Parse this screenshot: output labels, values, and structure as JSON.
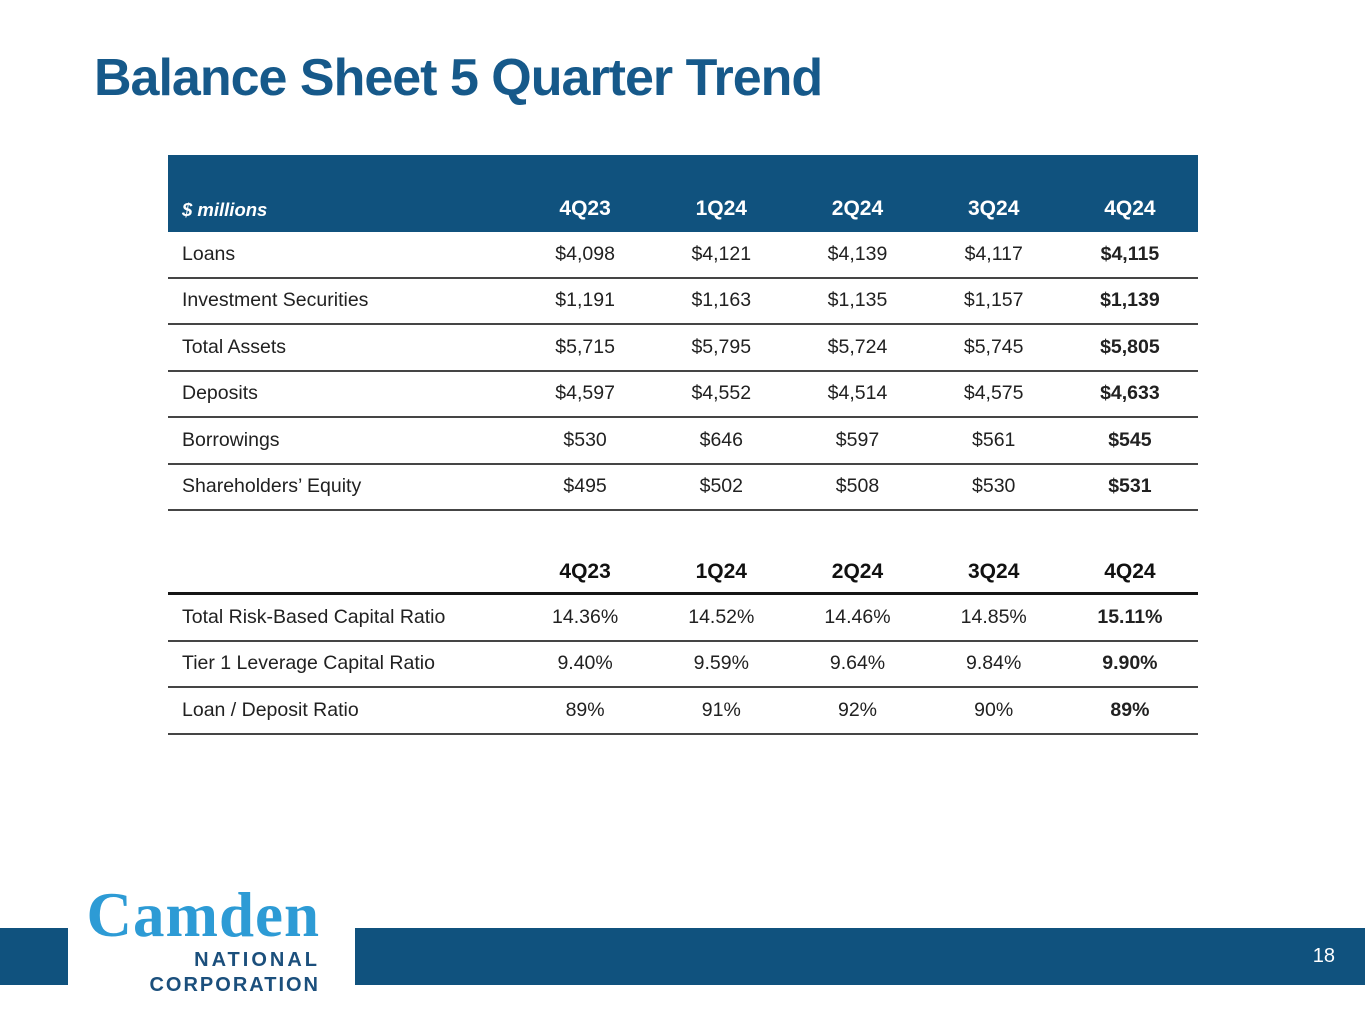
{
  "title": "Balance Sheet 5 Quarter Trend",
  "colors": {
    "brand_blue": "#10527E",
    "title_blue": "#16598A",
    "logo_light_blue": "#2D9BD5",
    "logo_navy": "#1B4F7C"
  },
  "balance_table": {
    "unit_label": "$ millions",
    "columns": [
      "4Q23",
      "1Q24",
      "2Q24",
      "3Q24",
      "4Q24"
    ],
    "rows": [
      {
        "label": "Loans",
        "values": [
          "$4,098",
          "$4,121",
          "$4,139",
          "$4,117",
          "$4,115"
        ]
      },
      {
        "label": "Investment Securities",
        "values": [
          "$1,191",
          "$1,163",
          "$1,135",
          "$1,157",
          "$1,139"
        ]
      },
      {
        "label": "Total Assets",
        "values": [
          "$5,715",
          "$5,795",
          "$5,724",
          "$5,745",
          "$5,805"
        ]
      },
      {
        "label": "Deposits",
        "values": [
          "$4,597",
          "$4,552",
          "$4,514",
          "$4,575",
          "$4,633"
        ]
      },
      {
        "label": "Borrowings",
        "values": [
          "$530",
          "$646",
          "$597",
          "$561",
          "$545"
        ]
      },
      {
        "label": "Shareholders’ Equity",
        "values": [
          "$495",
          "$502",
          "$508",
          "$530",
          "$531"
        ]
      }
    ]
  },
  "ratio_table": {
    "columns": [
      "4Q23",
      "1Q24",
      "2Q24",
      "3Q24",
      "4Q24"
    ],
    "rows": [
      {
        "label": "Total Risk-Based Capital Ratio",
        "values": [
          "14.36%",
          "14.52%",
          "14.46%",
          "14.85%",
          "15.11%"
        ]
      },
      {
        "label": "Tier 1 Leverage Capital Ratio",
        "values": [
          "9.40%",
          "9.59%",
          "9.64%",
          "9.84%",
          "9.90%"
        ]
      },
      {
        "label": "Loan / Deposit Ratio",
        "values": [
          "89%",
          "91%",
          "92%",
          "90%",
          "89%"
        ]
      }
    ]
  },
  "footer": {
    "page_number": "18",
    "logo": {
      "name": "Camden",
      "line2": "NATIONAL",
      "line3": "CORPORATION"
    }
  }
}
